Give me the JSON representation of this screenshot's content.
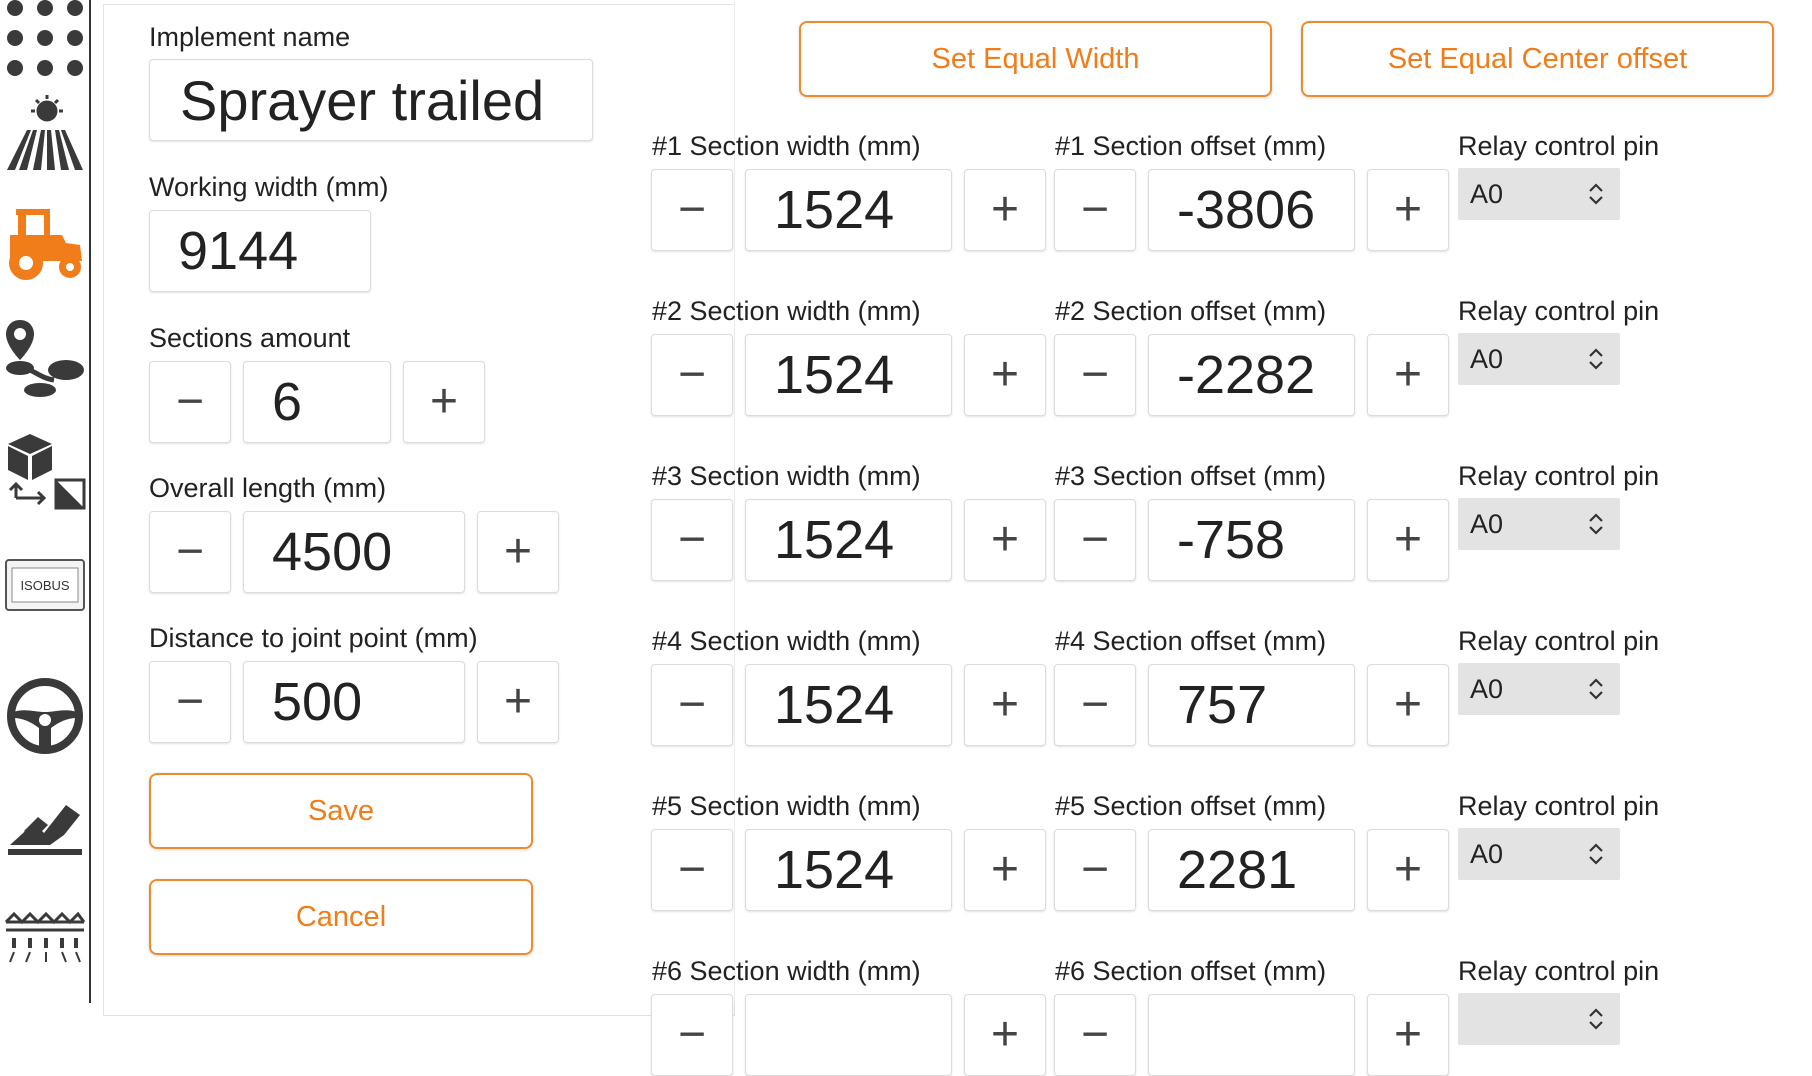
{
  "sidebar": {
    "items": [
      {
        "name": "dots-grid-icon"
      },
      {
        "name": "field-sun-icon"
      },
      {
        "name": "tractor-icon",
        "active": true
      },
      {
        "name": "route-pin-icon"
      },
      {
        "name": "box-resize-icon"
      },
      {
        "name": "isobus-icon",
        "label": "ISOBUS"
      },
      {
        "name": "steering-wheel-icon"
      },
      {
        "name": "hand-field-icon"
      },
      {
        "name": "sprayer-boom-icon"
      }
    ],
    "active_color": "#f07c1a"
  },
  "implement": {
    "name_label": "Implement name",
    "name_value": "Sprayer trailed",
    "working_width_label": "Working width (mm)",
    "working_width_value": "9144",
    "sections_amount_label": "Sections amount",
    "sections_amount_value": "6",
    "overall_length_label": "Overall length (mm)",
    "overall_length_value": "4500",
    "joint_distance_label": "Distance to joint point (mm)",
    "joint_distance_value": "500",
    "minus": "−",
    "plus": "+",
    "save_label": "Save",
    "cancel_label": "Cancel"
  },
  "actions": {
    "equal_width_label": "Set Equal Width",
    "equal_center_label": "Set Equal Center offset"
  },
  "sections": [
    {
      "width_label": "#1 Section width (mm)",
      "width": "1524",
      "offset_label": "#1 Section offset (mm)",
      "offset": "-3806",
      "relay_label": "Relay control pin",
      "relay": "A0"
    },
    {
      "width_label": "#2 Section width (mm)",
      "width": "1524",
      "offset_label": "#2 Section offset (mm)",
      "offset": "-2282",
      "relay_label": "Relay control pin",
      "relay": "A0"
    },
    {
      "width_label": "#3 Section width (mm)",
      "width": "1524",
      "offset_label": "#3 Section offset (mm)",
      "offset": "-758",
      "relay_label": "Relay control pin",
      "relay": "A0"
    },
    {
      "width_label": "#4 Section width (mm)",
      "width": "1524",
      "offset_label": "#4 Section offset (mm)",
      "offset": "757",
      "relay_label": "Relay control pin",
      "relay": "A0"
    },
    {
      "width_label": "#5 Section width (mm)",
      "width": "1524",
      "offset_label": "#5 Section offset (mm)",
      "offset": "2281",
      "relay_label": "Relay control pin",
      "relay": "A0"
    },
    {
      "width_label": "#6 Section width (mm)",
      "width": "",
      "offset_label": "#6 Section offset (mm)",
      "offset": "",
      "relay_label": "Relay control pin",
      "relay": ""
    }
  ],
  "colors": {
    "accent": "#f07c1a",
    "select_bg": "#e3e3e3",
    "icon_dark": "#3a3a3a"
  }
}
